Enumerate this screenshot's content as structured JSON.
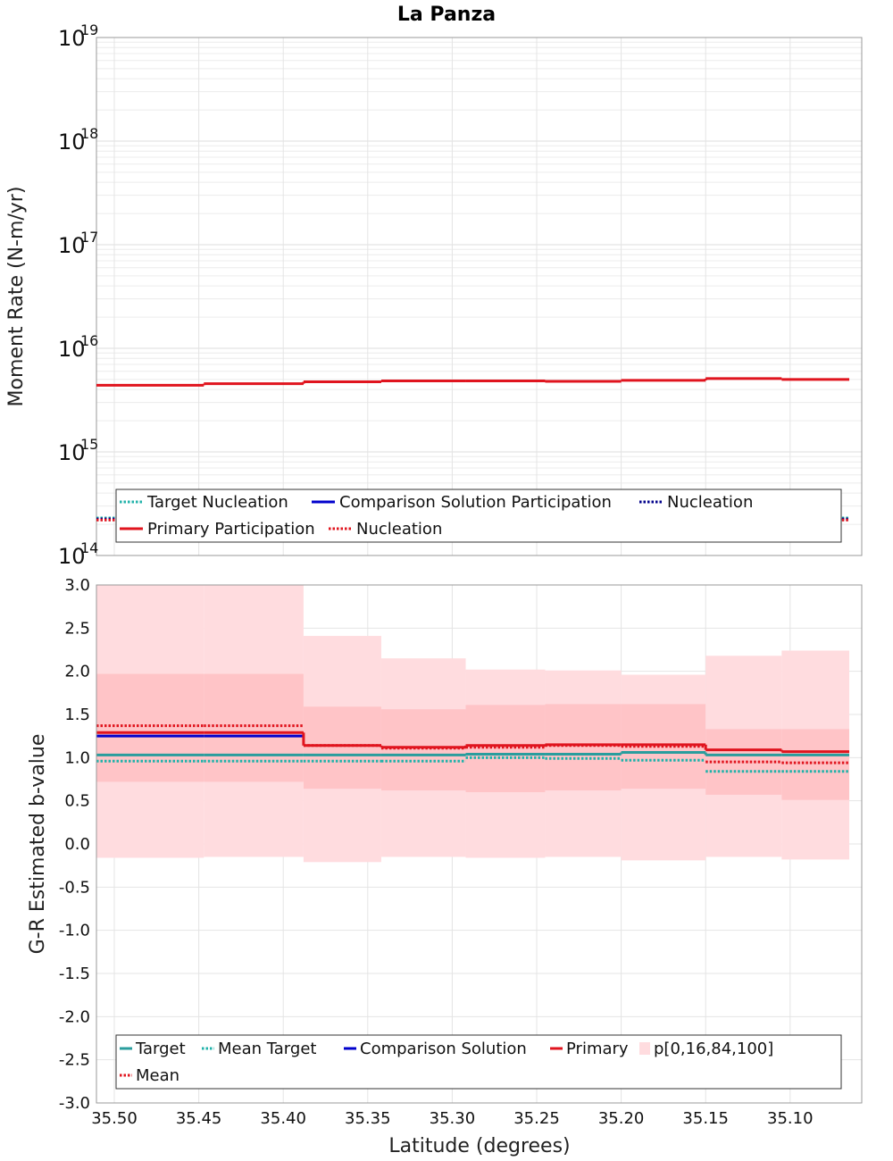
{
  "chart_data": [
    {
      "type": "line",
      "title": "La Panza",
      "ylabel": "Moment Rate (N-m/yr)",
      "xlabel": "",
      "xlim": [
        35.5,
        35.065
      ],
      "ylim_log10": [
        14,
        19
      ],
      "y_scale": "log",
      "y_ticks": [
        {
          "base": "10",
          "exp": "14"
        },
        {
          "base": "10",
          "exp": "15"
        },
        {
          "base": "10",
          "exp": "16"
        },
        {
          "base": "10",
          "exp": "17"
        },
        {
          "base": "10",
          "exp": "18"
        },
        {
          "base": "10",
          "exp": "19"
        }
      ],
      "grid": true,
      "legend_position": "bottom",
      "x_edges": [
        35.52,
        35.447,
        35.388,
        35.342,
        35.292,
        35.245,
        35.2,
        35.15,
        35.105,
        35.065
      ],
      "series": [
        {
          "name": "Target Nucleation",
          "color": "#20b2aa",
          "dash": "dotted",
          "values": [
            230000000000000.0,
            235000000000000.0,
            240000000000000.0,
            240000000000000.0,
            240000000000000.0,
            240000000000000.0,
            240000000000000.0,
            245000000000000.0,
            230000000000000.0
          ]
        },
        {
          "name": "Comparison Solution Participation",
          "color": "#0000cc",
          "dash": "solid",
          "values": [
            null,
            null,
            null,
            null,
            null,
            null,
            null,
            null,
            null
          ]
        },
        {
          "name": "Nucleation",
          "color": "#00008b",
          "dash": "dotted",
          "values": [
            225000000000000.0,
            230000000000000.0,
            235000000000000.0,
            235000000000000.0,
            235000000000000.0,
            235000000000000.0,
            235000000000000.0,
            240000000000000.0,
            225000000000000.0
          ]
        },
        {
          "name": "Primary Participation",
          "color": "#e0141e",
          "dash": "solid",
          "values": [
            4400000000000000.0,
            4550000000000000.0,
            4750000000000000.0,
            4850000000000000.0,
            4850000000000000.0,
            4800000000000000.0,
            4900000000000000.0,
            5100000000000000.0,
            5000000000000000.0
          ]
        },
        {
          "name": "Nucleation",
          "color": "#e0141e",
          "dash": "dotted",
          "values": [
            220000000000000.0,
            225000000000000.0,
            230000000000000.0,
            230000000000000.0,
            230000000000000.0,
            230000000000000.0,
            230000000000000.0,
            235000000000000.0,
            220000000000000.0
          ]
        }
      ]
    },
    {
      "type": "line",
      "title": "",
      "ylabel": "G-R Estimated b-value",
      "xlabel": "Latitude (degrees)",
      "xlim": [
        35.5,
        35.065
      ],
      "ylim": [
        -3.0,
        3.0
      ],
      "y_ticks": [
        "3.0",
        "2.5",
        "2.0",
        "1.5",
        "1.0",
        "0.5",
        "0.0",
        "-0.5",
        "-1.0",
        "-1.5",
        "-2.0",
        "-2.5",
        "-3.0"
      ],
      "x_ticks": [
        "35.50",
        "35.45",
        "35.40",
        "35.35",
        "35.30",
        "35.25",
        "35.20",
        "35.15",
        "35.10"
      ],
      "grid": true,
      "legend_position": "bottom",
      "x_edges": [
        35.52,
        35.447,
        35.388,
        35.342,
        35.292,
        35.245,
        35.2,
        35.15,
        35.105,
        35.065
      ],
      "bands": {
        "name": "p[0,16,84,100]",
        "outer_color": "#ffdcdf",
        "inner_color": "#ffc4c7",
        "p0": [
          -0.16,
          -0.15,
          -0.21,
          -0.15,
          -0.16,
          -0.15,
          -0.19,
          -0.15,
          -0.18
        ],
        "p16": [
          0.72,
          0.72,
          0.64,
          0.62,
          0.6,
          0.62,
          0.64,
          0.57,
          0.51
        ],
        "p84": [
          1.97,
          1.97,
          1.59,
          1.56,
          1.61,
          1.62,
          1.62,
          1.33,
          1.33
        ],
        "p100": [
          3.0,
          3.0,
          2.41,
          2.15,
          2.02,
          2.01,
          1.96,
          2.18,
          2.24
        ]
      },
      "series": [
        {
          "name": "Target",
          "color": "#2a9d9d",
          "dash": "solid",
          "values": [
            1.03,
            1.03,
            1.03,
            1.03,
            1.04,
            1.04,
            1.06,
            1.03,
            1.03
          ]
        },
        {
          "name": "Mean Target",
          "color": "#20b2aa",
          "dash": "dotted",
          "values": [
            0.96,
            0.96,
            0.96,
            0.96,
            1.0,
            0.99,
            0.97,
            0.84,
            0.84
          ]
        },
        {
          "name": "Comparison Solution",
          "color": "#0000cc",
          "dash": "solid",
          "values": [
            1.25,
            1.25,
            null,
            null,
            null,
            null,
            null,
            null,
            null
          ]
        },
        {
          "name": "Primary",
          "color": "#e0141e",
          "dash": "solid",
          "values": [
            1.29,
            1.29,
            1.14,
            1.12,
            1.14,
            1.15,
            1.15,
            1.09,
            1.07
          ]
        },
        {
          "name": "Mean",
          "color": "#e0141e",
          "dash": "dotted",
          "values": [
            1.37,
            1.37,
            1.14,
            1.11,
            1.12,
            1.14,
            1.13,
            0.95,
            0.94
          ]
        }
      ]
    }
  ]
}
